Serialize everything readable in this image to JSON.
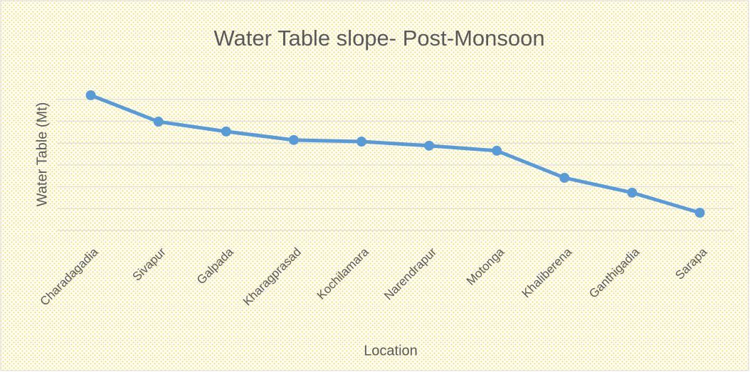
{
  "chart_data": {
    "type": "line",
    "title": "Water Table slope- Post-Monsoon",
    "x_label": "Location",
    "y_label": "Water Table (Mt)",
    "categories": [
      "Charadagadia",
      "Sivapur",
      "Galpada",
      "Kharagprasad",
      "Kochilamara",
      "Narendrapur",
      "Motonga",
      "Khaliberena",
      "Ganthigadia",
      "Sarapa"
    ],
    "series": [
      {
        "name": "Water Table",
        "color": "#5b9bd5",
        "values": [
          6.19,
          4.98,
          4.53,
          4.14,
          4.07,
          3.88,
          3.65,
          2.41,
          1.73,
          0.81
        ]
      }
    ],
    "ylim": [
      0,
      7
    ],
    "yticks": [
      0,
      1,
      2,
      3,
      4,
      5,
      6
    ],
    "grid": true
  }
}
